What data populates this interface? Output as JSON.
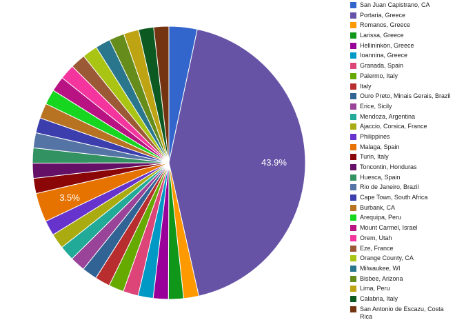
{
  "chart_data": {
    "type": "pie",
    "title": "",
    "legend_position": "right",
    "start_angle_deg": 0,
    "direction": "clockwise",
    "slices": [
      {
        "label": "San Juan Capistrano, CA",
        "value": 3.4,
        "color": "#3366cc"
      },
      {
        "label": "Portaria, Greece",
        "value": 43.9,
        "color": "#6753a6",
        "show_label": true,
        "display_label": "43.9%"
      },
      {
        "label": "Romanos, Greece",
        "value": 1.82,
        "color": "#ff9900"
      },
      {
        "label": "Larissa, Greece",
        "value": 1.82,
        "color": "#109618"
      },
      {
        "label": "Hellininkon, Greece",
        "value": 1.82,
        "color": "#990099"
      },
      {
        "label": "Ioannina, Greece",
        "value": 1.82,
        "color": "#0099c6"
      },
      {
        "label": "Granada, Spain",
        "value": 1.82,
        "color": "#dd4477"
      },
      {
        "label": "Palermo, Italy",
        "value": 1.82,
        "color": "#66aa00"
      },
      {
        "label": "Italy",
        "value": 1.82,
        "color": "#b82e2e"
      },
      {
        "label": "Ouro Preto, Minais Gerais, Brazil",
        "value": 1.82,
        "color": "#316395"
      },
      {
        "label": "Erice, Sicily",
        "value": 1.82,
        "color": "#994499"
      },
      {
        "label": "Mendoza, Argentina",
        "value": 1.82,
        "color": "#22aa99"
      },
      {
        "label": "Ajaccio, Corsica, France",
        "value": 1.82,
        "color": "#aaaa11"
      },
      {
        "label": "Philippines",
        "value": 1.82,
        "color": "#6633cc"
      },
      {
        "label": "Malaga, Spain",
        "value": 3.5,
        "color": "#e67300",
        "show_label": true,
        "display_label": "3.5%"
      },
      {
        "label": "Turin, Italy",
        "value": 1.82,
        "color": "#8b0707"
      },
      {
        "label": "Toncontin, Honduras",
        "value": 1.82,
        "color": "#651067"
      },
      {
        "label": "Huesca, Spain",
        "value": 1.82,
        "color": "#329262"
      },
      {
        "label": "Rio de Janeiro, Brazil",
        "value": 1.82,
        "color": "#5574a6"
      },
      {
        "label": "Cape Town, South Africa",
        "value": 1.82,
        "color": "#3b3eac"
      },
      {
        "label": "Burbank, CA",
        "value": 1.82,
        "color": "#b77322"
      },
      {
        "label": "Arequipa, Peru",
        "value": 1.82,
        "color": "#16d620"
      },
      {
        "label": "Mount Carmel, Israel",
        "value": 1.82,
        "color": "#b91383"
      },
      {
        "label": "Orem, Utah",
        "value": 1.82,
        "color": "#f4359e"
      },
      {
        "label": "Eze, France",
        "value": 1.82,
        "color": "#9c5935"
      },
      {
        "label": "Orange County, CA",
        "value": 1.82,
        "color": "#a9c413"
      },
      {
        "label": "Milwaukee, WI",
        "value": 1.82,
        "color": "#2a778d"
      },
      {
        "label": "Bisbee, Arizona",
        "value": 1.82,
        "color": "#668d1c"
      },
      {
        "label": "Lima, Peru",
        "value": 1.82,
        "color": "#bea413"
      },
      {
        "label": "Calabria, Italy",
        "value": 1.82,
        "color": "#0c5922"
      },
      {
        "label": "San Antonio de Escazu, Costa Rica",
        "value": 1.82,
        "color": "#743411"
      }
    ]
  },
  "legend": {
    "items": [
      {
        "label": "San Juan Capistrano, CA",
        "color": "#3366cc"
      },
      {
        "label": "Portaria, Greece",
        "color": "#6753a6"
      },
      {
        "label": "Romanos, Greece",
        "color": "#ff9900"
      },
      {
        "label": "Larissa, Greece",
        "color": "#109618"
      },
      {
        "label": "Hellininkon, Greece",
        "color": "#990099"
      },
      {
        "label": "Ioannina, Greece",
        "color": "#0099c6"
      },
      {
        "label": "Granada, Spain",
        "color": "#dd4477"
      },
      {
        "label": "Palermo, Italy",
        "color": "#66aa00"
      },
      {
        "label": "Italy",
        "color": "#b82e2e"
      },
      {
        "label": "Ouro Preto, Minais Gerais, Brazil",
        "color": "#316395"
      },
      {
        "label": "Erice, Sicily",
        "color": "#994499"
      },
      {
        "label": "Mendoza, Argentina",
        "color": "#22aa99"
      },
      {
        "label": "Ajaccio, Corsica, France",
        "color": "#aaaa11"
      },
      {
        "label": "Philippines",
        "color": "#6633cc"
      },
      {
        "label": "Malaga, Spain",
        "color": "#e67300"
      },
      {
        "label": "Turin, Italy",
        "color": "#8b0707"
      },
      {
        "label": "Toncontin, Honduras",
        "color": "#651067"
      },
      {
        "label": "Huesca, Spain",
        "color": "#329262"
      },
      {
        "label": "Rio de Janeiro, Brazil",
        "color": "#5574a6"
      },
      {
        "label": "Cape Town, South Africa",
        "color": "#3b3eac"
      },
      {
        "label": "Burbank, CA",
        "color": "#b77322"
      },
      {
        "label": "Arequipa, Peru",
        "color": "#16d620"
      },
      {
        "label": "Mount Carmel, Israel",
        "color": "#b91383"
      },
      {
        "label": "Orem, Utah",
        "color": "#f4359e"
      },
      {
        "label": "Eze, France",
        "color": "#9c5935"
      },
      {
        "label": "Orange County, CA",
        "color": "#a9c413"
      },
      {
        "label": "Milwaukee, WI",
        "color": "#2a778d"
      },
      {
        "label": "Bisbee, Arizona",
        "color": "#668d1c"
      },
      {
        "label": "Lima, Peru",
        "color": "#bea413"
      },
      {
        "label": "Calabria, Italy",
        "color": "#0c5922"
      },
      {
        "label": "San Antonio de Escazu, Costa Rica",
        "color": "#743411"
      }
    ]
  }
}
